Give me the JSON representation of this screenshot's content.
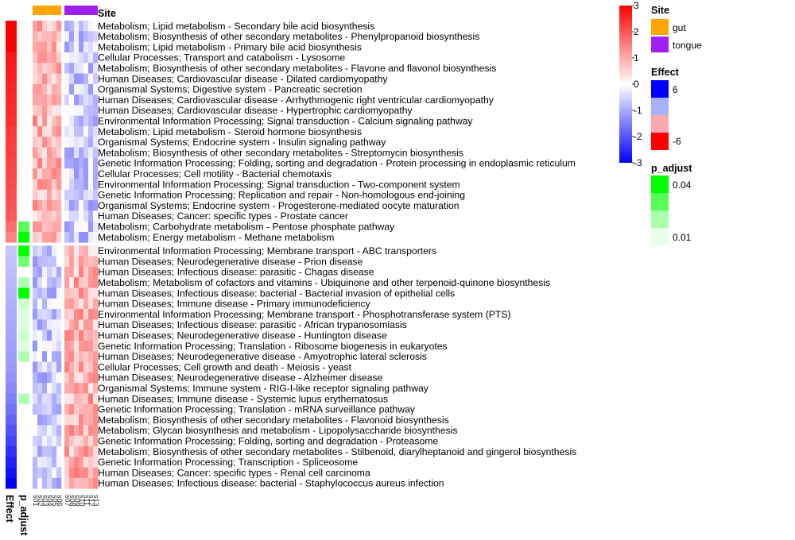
{
  "chart_data": {
    "type": "heatmap",
    "column_annotation": {
      "title": "Site"
    },
    "row_annotations": {
      "effect_label": "Effect",
      "padj_label": "p_adjust"
    },
    "row_groups": [
      {
        "rows": [
          {
            "label": "Metabolism; Lipid metabolism - Secondary bile acid biosynthesis",
            "effect": -6.4,
            "p_adjust": null
          },
          {
            "label": "Metabolism; Biosynthesis of other secondary metabolites - Phenylpropanoid biosynthesis",
            "effect": -6.2,
            "p_adjust": null
          },
          {
            "label": "Metabolism; Lipid metabolism - Primary bile acid biosynthesis",
            "effect": -6.0,
            "p_adjust": null
          },
          {
            "label": "Cellular Processes; Transport and catabolism - Lysosome",
            "effect": -5.4,
            "p_adjust": null
          },
          {
            "label": "Metabolism; Biosynthesis of other secondary metabolites - Flavone and flavonol biosynthesis",
            "effect": -5.3,
            "p_adjust": null
          },
          {
            "label": "Human Diseases; Cardiovascular disease - Dilated cardiomyopathy",
            "effect": -5.2,
            "p_adjust": null
          },
          {
            "label": "Organismal Systems; Digestive system - Pancreatic secretion",
            "effect": -5.1,
            "p_adjust": null
          },
          {
            "label": "Human Diseases; Cardiovascular disease - Arrhythmogenic right ventricular cardiomyopathy",
            "effect": -5.0,
            "p_adjust": null
          },
          {
            "label": "Human Diseases; Cardiovascular disease - Hypertrophic cardiomyopathy",
            "effect": -4.9,
            "p_adjust": null
          },
          {
            "label": "Environmental Information Processing; Signal transduction - Calcium signaling pathway",
            "effect": -4.8,
            "p_adjust": null
          },
          {
            "label": "Metabolism; Lipid metabolism - Steroid hormone biosynthesis",
            "effect": -4.6,
            "p_adjust": null
          },
          {
            "label": "Organismal Systems; Endocrine system - Insulin signaling pathway",
            "effect": -4.5,
            "p_adjust": null
          },
          {
            "label": "Metabolism; Biosynthesis of other secondary metabolites - Streptomycin biosynthesis",
            "effect": -4.4,
            "p_adjust": null
          },
          {
            "label": "Genetic Information Processing; Folding, sorting and degradation - Protein processing in endoplasmic reticulum",
            "effect": -4.3,
            "p_adjust": null
          },
          {
            "label": "Cellular Processes; Cell motility - Bacterial chemotaxis",
            "effect": -4.2,
            "p_adjust": null
          },
          {
            "label": "Environmental Information Processing; Signal transduction - Two-component system",
            "effect": -4.1,
            "p_adjust": null
          },
          {
            "label": "Genetic Information Processing; Replication and repair - Non-homologous end-joining",
            "effect": -4.0,
            "p_adjust": null
          },
          {
            "label": "Organismal Systems; Endocrine system - Progesterone-mediated oocyte maturation",
            "effect": -3.9,
            "p_adjust": null
          },
          {
            "label": "Human Diseases; Cancer: specific types - Prostate cancer",
            "effect": -3.7,
            "p_adjust": null
          },
          {
            "label": "Metabolism; Carbohydrate metabolism - Pentose phosphate pathway",
            "effect": -3.2,
            "p_adjust": 0.025
          },
          {
            "label": "Metabolism; Energy metabolism - Methane metabolism",
            "effect": -2.6,
            "p_adjust": 0.01
          }
        ]
      },
      {
        "rows": [
          {
            "label": "Environmental Information Processing; Membrane transport - ABC transporters",
            "effect": 1.0,
            "p_adjust": 0.01
          },
          {
            "label": "Human Diseases; Neurodegenerative disease - Prion disease",
            "effect": 1.1,
            "p_adjust": 0.03
          },
          {
            "label": "Human Diseases; Infectious disease: parasitic - Chagas disease",
            "effect": 1.2,
            "p_adjust": null
          },
          {
            "label": "Metabolism; Metabolism of cofactors and vitamins - Ubiquinone and other terpenoid-quinone biosynthesis",
            "effect": 1.3,
            "p_adjust": 0.04
          },
          {
            "label": "Human Diseases; Infectious disease: bacterial - Bacterial invasion of epithelial cells",
            "effect": 1.4,
            "p_adjust": 0.01
          },
          {
            "label": "Human Diseases; Immune disease - Primary immunodeficiency",
            "effect": 1.5,
            "p_adjust": 0.045
          },
          {
            "label": "Environmental Information Processing; Membrane transport - Phosphotransferase system (PTS)",
            "effect": 1.6,
            "p_adjust": 0.048
          },
          {
            "label": "Human Diseases; Infectious disease: parasitic - African trypanosomiasis",
            "effect": 1.7,
            "p_adjust": 0.048
          },
          {
            "label": "Human Diseases; Neurodegenerative disease - Huntington disease",
            "effect": 1.8,
            "p_adjust": 0.045
          },
          {
            "label": "Genetic Information Processing; Translation - Ribosome biogenesis in eukaryotes",
            "effect": 1.9,
            "p_adjust": 0.048
          },
          {
            "label": "Human Diseases; Neurodegenerative disease - Amyotrophic lateral sclerosis",
            "effect": 2.0,
            "p_adjust": 0.04
          },
          {
            "label": "Cellular Processes; Cell growth and death - Meiosis - yeast",
            "effect": 2.1,
            "p_adjust": null
          },
          {
            "label": "Human Diseases; Neurodegenerative disease - Alzheimer disease",
            "effect": 2.3,
            "p_adjust": null
          },
          {
            "label": "Organismal Systems; Immune system - RIG-I-like receptor signaling pathway",
            "effect": 2.5,
            "p_adjust": null
          },
          {
            "label": "Human Diseases; Immune disease - Systemic lupus erythematosus",
            "effect": 2.8,
            "p_adjust": 0.04
          },
          {
            "label": "Genetic Information Processing; Translation - mRNA surveillance pathway",
            "effect": 3.1,
            "p_adjust": null
          },
          {
            "label": "Metabolism; Biosynthesis of other secondary metabolites - Flavonoid biosynthesis",
            "effect": 3.5,
            "p_adjust": null
          },
          {
            "label": "Metabolism; Glycan biosynthesis and metabolism - Lipopolysaccharide biosynthesis",
            "effect": 3.9,
            "p_adjust": null
          },
          {
            "label": "Genetic Information Processing; Folding, sorting and degradation - Proteasome",
            "effect": 4.3,
            "p_adjust": null
          },
          {
            "label": "Metabolism; Biosynthesis of other secondary metabolites - Stilbenoid, diarylheptanoid and gingerol biosynthesis",
            "effect": 4.8,
            "p_adjust": null
          },
          {
            "label": "Genetic Information Processing; Transcription - Spliceosome",
            "effect": 5.2,
            "p_adjust": null
          },
          {
            "label": "Human Diseases; Cancer: specific types - Renal cell carcinoma",
            "effect": 5.6,
            "p_adjust": null
          },
          {
            "label": "Human Diseases; Infectious disease: bacterial - Staphylococcus aureus infection",
            "effect": 6.3,
            "p_adjust": null
          }
        ]
      }
    ],
    "column_groups": [
      {
        "site": "gut",
        "color": "#ffa500",
        "n_columns": 6
      },
      {
        "site": "tongue",
        "color": "#a020f0",
        "n_columns": 7
      }
    ],
    "heatmap_scale": {
      "min": -3,
      "max": 3,
      "colors": [
        "#0000ff",
        "#ffffff",
        "#ff0000"
      ],
      "ticks": [
        3,
        2,
        1,
        0,
        -1,
        -2,
        -3
      ]
    },
    "legends": {
      "site": {
        "title": "Site",
        "items": [
          {
            "label": "gut",
            "color": "#ffa500"
          },
          {
            "label": "tongue",
            "color": "#a020f0"
          }
        ]
      },
      "effect": {
        "title": "Effect",
        "ticks": [
          "6",
          "-6"
        ],
        "colors": [
          "#0000ff",
          "#aab0f8",
          "#f8aab0",
          "#ff0000"
        ]
      },
      "p_adjust": {
        "title": "p_adjust",
        "ticks": [
          "0.04",
          "0.01"
        ],
        "colors": [
          "#00ff00",
          "#55ff55",
          "#aaffaa",
          "#eaffea"
        ]
      }
    }
  }
}
